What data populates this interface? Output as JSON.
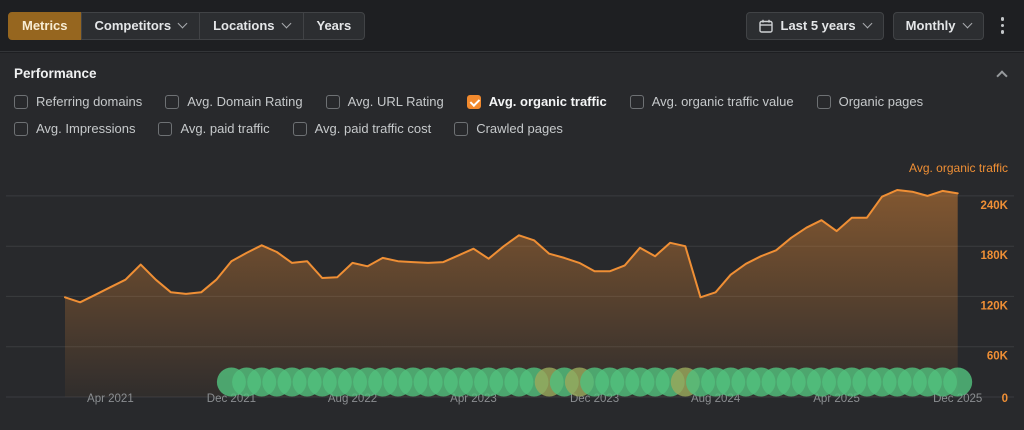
{
  "toolbar": {
    "tabs": [
      {
        "label": "Metrics",
        "selected": true,
        "has_chevron": false
      },
      {
        "label": "Competitors",
        "selected": false,
        "has_chevron": true
      },
      {
        "label": "Locations",
        "selected": false,
        "has_chevron": true
      },
      {
        "label": "Years",
        "selected": false,
        "has_chevron": false
      }
    ],
    "date_range_label": "Last 5 years",
    "granularity_label": "Monthly"
  },
  "panel": {
    "title": "Performance",
    "metric_rows": [
      [
        {
          "label": "Referring domains",
          "checked": false
        },
        {
          "label": "Avg. Domain Rating",
          "checked": false
        },
        {
          "label": "Avg. URL Rating",
          "checked": false
        },
        {
          "label": "Avg. organic traffic",
          "checked": true
        },
        {
          "label": "Avg. organic traffic value",
          "checked": false
        },
        {
          "label": "Organic pages",
          "checked": false
        }
      ],
      [
        {
          "label": "Avg. Impressions",
          "checked": false
        },
        {
          "label": "Avg. paid traffic",
          "checked": false
        },
        {
          "label": "Avg. paid traffic cost",
          "checked": false
        },
        {
          "label": "Crawled pages",
          "checked": false
        }
      ]
    ]
  },
  "chart_data": {
    "type": "area",
    "series_label": "Avg. organic traffic",
    "x_unit": "month",
    "x_range": [
      "Jan 2021",
      "Dec 2025"
    ],
    "values_k": [
      119,
      113,
      122,
      131,
      140,
      158,
      140,
      125,
      123,
      125,
      140,
      162,
      172,
      181,
      173,
      160,
      162,
      142,
      143,
      160,
      156,
      166,
      162,
      161,
      160,
      161,
      169,
      177,
      165,
      180,
      193,
      187,
      171,
      166,
      160,
      150,
      150,
      157,
      178,
      168,
      184,
      180,
      119,
      125,
      146,
      159,
      168,
      175,
      190,
      202,
      211,
      198,
      214,
      214,
      239,
      247,
      245,
      240,
      246,
      243
    ],
    "ylim_k": [
      0,
      290
    ],
    "y_ticks": [
      {
        "label": "240K",
        "value": 240
      },
      {
        "label": "180K",
        "value": 180
      },
      {
        "label": "120K",
        "value": 120
      },
      {
        "label": "60K",
        "value": 60
      },
      {
        "label": "0",
        "value": 0
      }
    ],
    "x_ticks": [
      {
        "label": "Apr 2021",
        "month": 3
      },
      {
        "label": "Dec 2021",
        "month": 11
      },
      {
        "label": "Aug 2022",
        "month": 19
      },
      {
        "label": "Apr 2023",
        "month": 27
      },
      {
        "label": "Dec 2023",
        "month": 35
      },
      {
        "label": "Aug 2024",
        "month": 43
      },
      {
        "label": "Apr 2025",
        "month": 51
      },
      {
        "label": "Dec 2025",
        "month": 59
      }
    ],
    "grid": true,
    "legend_position": "top-right",
    "annotations": {
      "shape": "circle",
      "start_month": 11,
      "end_month": 59,
      "olive_months": [
        32,
        34,
        41
      ]
    }
  },
  "colors": {
    "accent_orange": "#f28a2e",
    "line_orange": "#ef8f35",
    "tick_orange": "#ef8f35",
    "annotation_green": "#52c07c",
    "annotation_olive": "#9aa85c",
    "selected_tab_bg": "#96661f",
    "gridline": "#3a3c3f",
    "x_tick_text": "#8b8e91",
    "panel_bg": "#28292c"
  }
}
